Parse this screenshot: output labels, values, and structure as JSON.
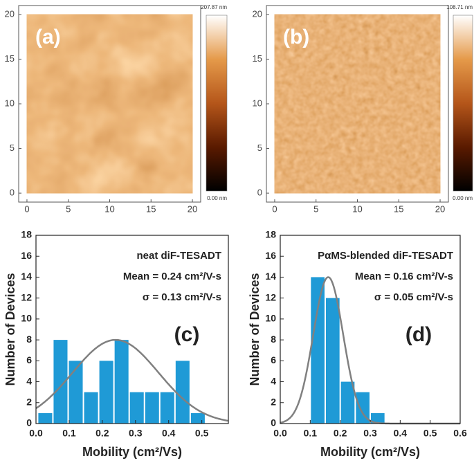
{
  "chart_data": [
    {
      "type": "image",
      "label": "(a)",
      "xlim": [
        -1,
        21
      ],
      "ylim": [
        -1,
        21
      ],
      "xticks": [
        0,
        5,
        10,
        15,
        20
      ],
      "yticks": [
        0,
        5,
        10,
        15,
        20
      ],
      "colorbar_labels": [
        "207.87 nm",
        "0.00 nm"
      ],
      "texture": "smooth",
      "colormap": [
        "#000000",
        "#5a1a00",
        "#b5561a",
        "#e59a4a",
        "#ffffff"
      ]
    },
    {
      "type": "image",
      "label": "(b)",
      "xlim": [
        -1,
        21
      ],
      "ylim": [
        -1,
        21
      ],
      "xticks": [
        0,
        5,
        10,
        15,
        20
      ],
      "yticks": [
        0,
        5,
        10,
        15,
        20
      ],
      "colorbar_labels": [
        "108.71 nm",
        "0.00 nm"
      ],
      "texture": "fine",
      "colormap": [
        "#000000",
        "#5a1a00",
        "#b5561a",
        "#e59a4a",
        "#ffffff"
      ]
    },
    {
      "type": "histogram",
      "label": "(c)",
      "annotations": [
        "neat diF-TESADT",
        "Mean = 0.24 cm²/V-s",
        "σ = 0.13 cm²/V-s"
      ],
      "x_label": "Mobility (cm²/Vs)",
      "y_label": "Number of Devices",
      "bins": [
        0.005,
        0.051,
        0.097,
        0.143,
        0.189,
        0.235,
        0.281,
        0.327,
        0.373,
        0.419,
        0.465,
        0.511
      ],
      "values": [
        1,
        8,
        6,
        3,
        6,
        8,
        3,
        3,
        3,
        6,
        1
      ],
      "color": "#1f9ad6",
      "fit": {
        "mean": 0.24,
        "sigma": 0.13,
        "peak": 8,
        "color": "#808080"
      },
      "xlim": [
        0,
        0.58
      ],
      "ylim": [
        0,
        18
      ],
      "xticks": [
        {
          "value": 0,
          "label": "0.0"
        },
        0.1,
        0.2,
        0.3,
        0.4,
        0.5
      ],
      "yticks": [
        0,
        2,
        4,
        6,
        8,
        10,
        12,
        14,
        16,
        18
      ]
    },
    {
      "type": "histogram",
      "label": "(d)",
      "annotations": [
        "PαMS-blended diF-TESADT",
        "Mean = 0.16 cm²/V-s",
        "σ = 0.05 cm²/V-s"
      ],
      "x_label": "Mobility (cm²/Vs)",
      "y_label": "Number of Devices",
      "bins": [
        0.1,
        0.15,
        0.2,
        0.25,
        0.3,
        0.35
      ],
      "values": [
        14,
        12,
        4,
        3,
        1
      ],
      "color": "#1f9ad6",
      "fit": {
        "mean": 0.16,
        "sigma": 0.05,
        "peak": 14,
        "color": "#808080"
      },
      "xlim": [
        0,
        0.6
      ],
      "ylim": [
        0,
        18
      ],
      "xticks": [
        {
          "value": 0,
          "label": "0.0"
        },
        0.1,
        0.2,
        0.3,
        0.4,
        0.5,
        0.6
      ],
      "yticks": [
        0,
        2,
        4,
        6,
        8,
        10,
        12,
        14,
        16,
        18
      ]
    }
  ]
}
